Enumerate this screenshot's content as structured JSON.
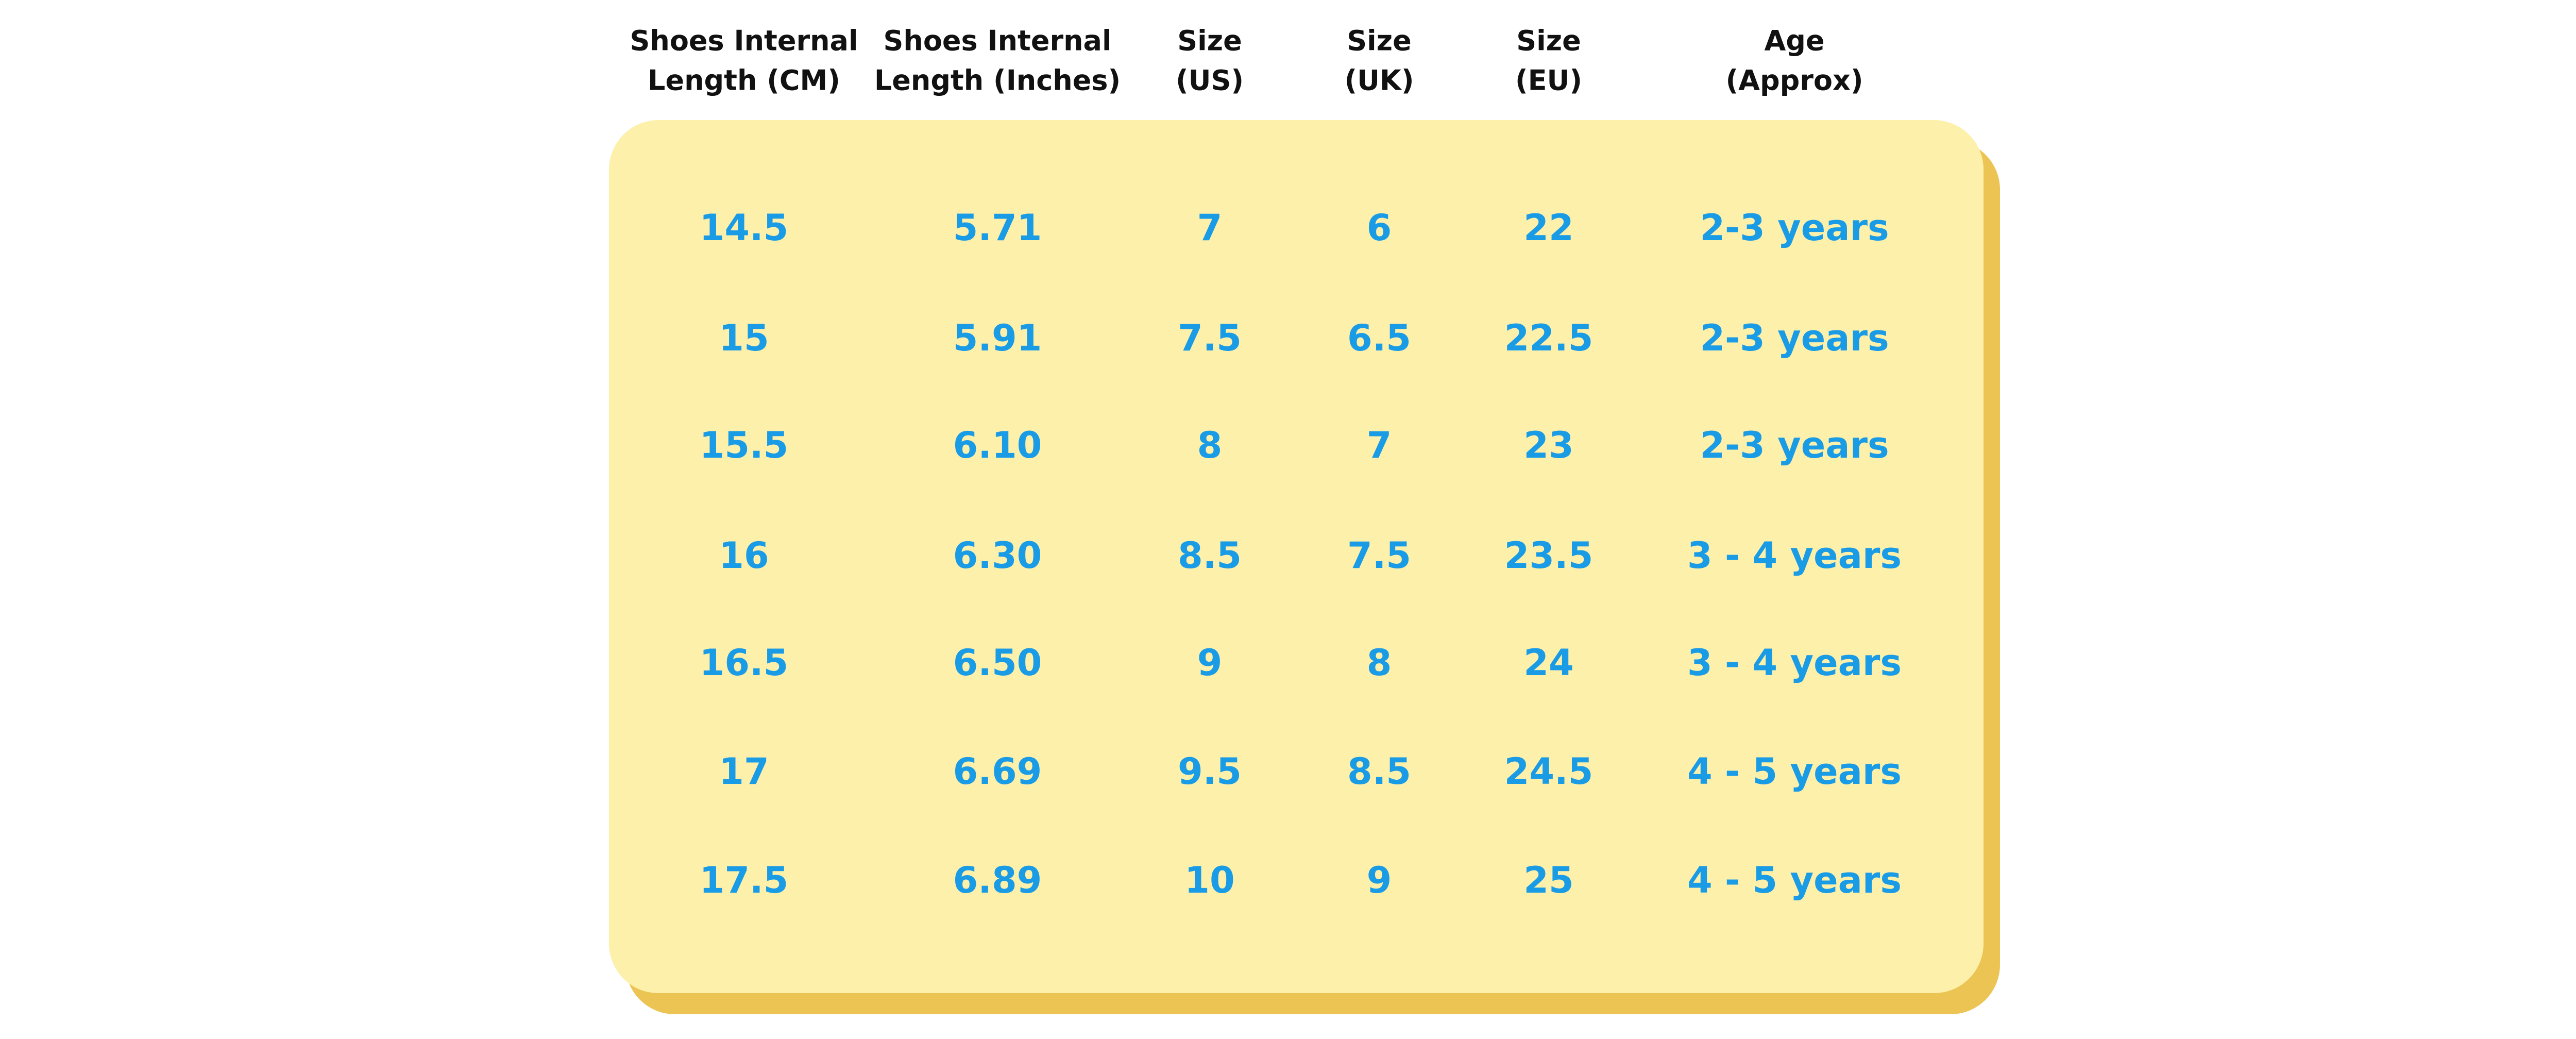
{
  "table": {
    "headers": [
      [
        "Shoes Internal",
        "Length (CM)"
      ],
      [
        "Shoes Internal",
        "Length (Inches)"
      ],
      [
        "Size",
        "(US)"
      ],
      [
        "Size",
        "(UK)"
      ],
      [
        "Size",
        "(EU)"
      ],
      [
        "Age",
        "(Approx)"
      ]
    ],
    "rows": [
      [
        "14.5",
        "5.71",
        "7",
        "6",
        "22",
        "2-3 years"
      ],
      [
        "15",
        "5.91",
        "7.5",
        "6.5",
        "22.5",
        "2-3 years"
      ],
      [
        "15.5",
        "6.10",
        "8",
        "7",
        "23",
        "2-3 years"
      ],
      [
        "16",
        "6.30",
        "8.5",
        "7.5",
        "23.5",
        "3 - 4 years"
      ],
      [
        "16.5",
        "6.50",
        "9",
        "8",
        "24",
        "3 - 4 years"
      ],
      [
        "17",
        "6.69",
        "9.5",
        "8.5",
        "24.5",
        "4 - 5 years"
      ],
      [
        "17.5",
        "6.89",
        "10",
        "9",
        "25",
        "4 - 5 years"
      ]
    ]
  }
}
